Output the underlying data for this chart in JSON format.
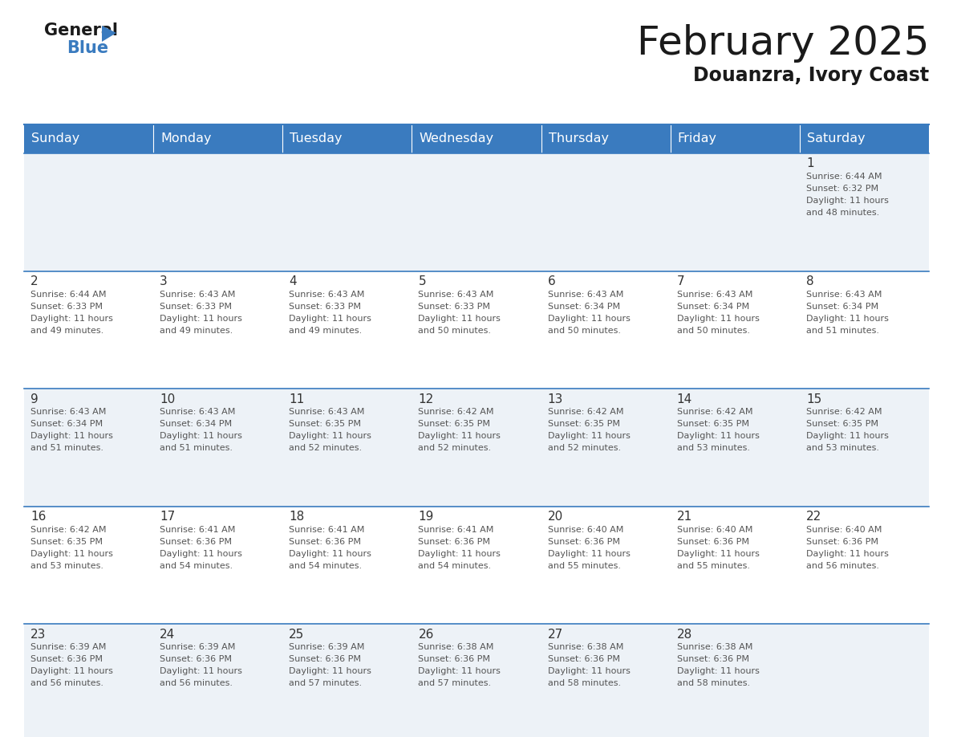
{
  "title": "February 2025",
  "subtitle": "Douanzra, Ivory Coast",
  "header_bg": "#3a7bbf",
  "header_text": "#ffffff",
  "cell_bg_odd": "#edf2f7",
  "cell_bg_even": "#ffffff",
  "border_color": "#3a7bbf",
  "text_color": "#333333",
  "day_names": [
    "Sunday",
    "Monday",
    "Tuesday",
    "Wednesday",
    "Thursday",
    "Friday",
    "Saturday"
  ],
  "calendar": [
    [
      null,
      null,
      null,
      null,
      null,
      null,
      {
        "day": "1",
        "sunrise": "6:44 AM",
        "sunset": "6:32 PM",
        "daylight": "11 hours and 48 minutes."
      }
    ],
    [
      {
        "day": "2",
        "sunrise": "6:44 AM",
        "sunset": "6:33 PM",
        "daylight": "11 hours and 49 minutes."
      },
      {
        "day": "3",
        "sunrise": "6:43 AM",
        "sunset": "6:33 PM",
        "daylight": "11 hours and 49 minutes."
      },
      {
        "day": "4",
        "sunrise": "6:43 AM",
        "sunset": "6:33 PM",
        "daylight": "11 hours and 49 minutes."
      },
      {
        "day": "5",
        "sunrise": "6:43 AM",
        "sunset": "6:33 PM",
        "daylight": "11 hours and 50 minutes."
      },
      {
        "day": "6",
        "sunrise": "6:43 AM",
        "sunset": "6:34 PM",
        "daylight": "11 hours and 50 minutes."
      },
      {
        "day": "7",
        "sunrise": "6:43 AM",
        "sunset": "6:34 PM",
        "daylight": "11 hours and 50 minutes."
      },
      {
        "day": "8",
        "sunrise": "6:43 AM",
        "sunset": "6:34 PM",
        "daylight": "11 hours and 51 minutes."
      }
    ],
    [
      {
        "day": "9",
        "sunrise": "6:43 AM",
        "sunset": "6:34 PM",
        "daylight": "11 hours and 51 minutes."
      },
      {
        "day": "10",
        "sunrise": "6:43 AM",
        "sunset": "6:34 PM",
        "daylight": "11 hours and 51 minutes."
      },
      {
        "day": "11",
        "sunrise": "6:43 AM",
        "sunset": "6:35 PM",
        "daylight": "11 hours and 52 minutes."
      },
      {
        "day": "12",
        "sunrise": "6:42 AM",
        "sunset": "6:35 PM",
        "daylight": "11 hours and 52 minutes."
      },
      {
        "day": "13",
        "sunrise": "6:42 AM",
        "sunset": "6:35 PM",
        "daylight": "11 hours and 52 minutes."
      },
      {
        "day": "14",
        "sunrise": "6:42 AM",
        "sunset": "6:35 PM",
        "daylight": "11 hours and 53 minutes."
      },
      {
        "day": "15",
        "sunrise": "6:42 AM",
        "sunset": "6:35 PM",
        "daylight": "11 hours and 53 minutes."
      }
    ],
    [
      {
        "day": "16",
        "sunrise": "6:42 AM",
        "sunset": "6:35 PM",
        "daylight": "11 hours and 53 minutes."
      },
      {
        "day": "17",
        "sunrise": "6:41 AM",
        "sunset": "6:36 PM",
        "daylight": "11 hours and 54 minutes."
      },
      {
        "day": "18",
        "sunrise": "6:41 AM",
        "sunset": "6:36 PM",
        "daylight": "11 hours and 54 minutes."
      },
      {
        "day": "19",
        "sunrise": "6:41 AM",
        "sunset": "6:36 PM",
        "daylight": "11 hours and 54 minutes."
      },
      {
        "day": "20",
        "sunrise": "6:40 AM",
        "sunset": "6:36 PM",
        "daylight": "11 hours and 55 minutes."
      },
      {
        "day": "21",
        "sunrise": "6:40 AM",
        "sunset": "6:36 PM",
        "daylight": "11 hours and 55 minutes."
      },
      {
        "day": "22",
        "sunrise": "6:40 AM",
        "sunset": "6:36 PM",
        "daylight": "11 hours and 56 minutes."
      }
    ],
    [
      {
        "day": "23",
        "sunrise": "6:39 AM",
        "sunset": "6:36 PM",
        "daylight": "11 hours and 56 minutes."
      },
      {
        "day": "24",
        "sunrise": "6:39 AM",
        "sunset": "6:36 PM",
        "daylight": "11 hours and 56 minutes."
      },
      {
        "day": "25",
        "sunrise": "6:39 AM",
        "sunset": "6:36 PM",
        "daylight": "11 hours and 57 minutes."
      },
      {
        "day": "26",
        "sunrise": "6:38 AM",
        "sunset": "6:36 PM",
        "daylight": "11 hours and 57 minutes."
      },
      {
        "day": "27",
        "sunrise": "6:38 AM",
        "sunset": "6:36 PM",
        "daylight": "11 hours and 58 minutes."
      },
      {
        "day": "28",
        "sunrise": "6:38 AM",
        "sunset": "6:36 PM",
        "daylight": "11 hours and 58 minutes."
      },
      null
    ]
  ]
}
